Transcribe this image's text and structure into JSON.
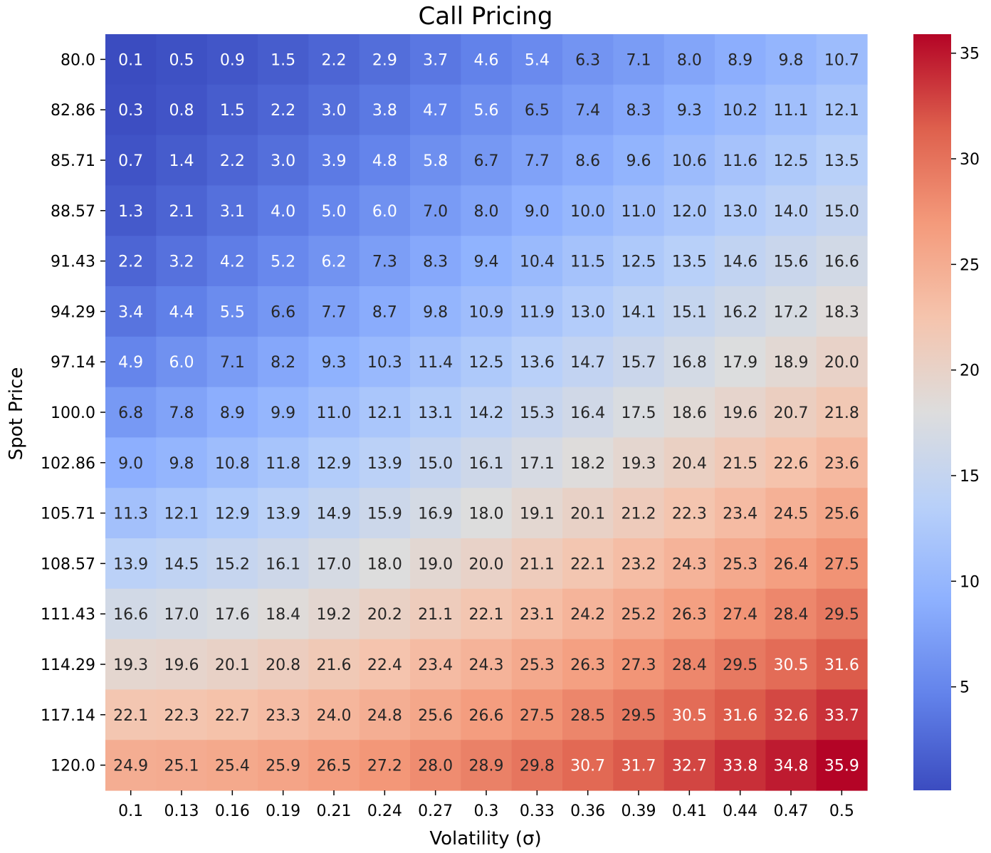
{
  "chart_data": {
    "type": "heatmap",
    "title": "Call Pricing",
    "xlabel": "Volatility (σ)",
    "ylabel": "Spot Price",
    "x_tick_labels": [
      "0.1",
      "0.13",
      "0.16",
      "0.19",
      "0.21",
      "0.24",
      "0.27",
      "0.3",
      "0.33",
      "0.36",
      "0.39",
      "0.41",
      "0.44",
      "0.47",
      "0.5"
    ],
    "y_tick_labels": [
      "80.0",
      "82.86",
      "85.71",
      "88.57",
      "91.43",
      "94.29",
      "97.14",
      "100.0",
      "102.86",
      "105.71",
      "108.57",
      "111.43",
      "114.29",
      "117.14",
      "120.0"
    ],
    "values": [
      [
        0.1,
        0.5,
        0.9,
        1.5,
        2.2,
        2.9,
        3.7,
        4.6,
        5.4,
        6.3,
        7.1,
        8.0,
        8.9,
        9.8,
        10.7
      ],
      [
        0.3,
        0.8,
        1.5,
        2.2,
        3.0,
        3.8,
        4.7,
        5.6,
        6.5,
        7.4,
        8.3,
        9.3,
        10.2,
        11.1,
        12.1
      ],
      [
        0.7,
        1.4,
        2.2,
        3.0,
        3.9,
        4.8,
        5.8,
        6.7,
        7.7,
        8.6,
        9.6,
        10.6,
        11.6,
        12.5,
        13.5
      ],
      [
        1.3,
        2.1,
        3.1,
        4.0,
        5.0,
        6.0,
        7.0,
        8.0,
        9.0,
        10.0,
        11.0,
        12.0,
        13.0,
        14.0,
        15.0
      ],
      [
        2.2,
        3.2,
        4.2,
        5.2,
        6.2,
        7.3,
        8.3,
        9.4,
        10.4,
        11.5,
        12.5,
        13.5,
        14.6,
        15.6,
        16.6
      ],
      [
        3.4,
        4.4,
        5.5,
        6.6,
        7.7,
        8.7,
        9.8,
        10.9,
        11.9,
        13.0,
        14.1,
        15.1,
        16.2,
        17.2,
        18.3
      ],
      [
        4.9,
        6.0,
        7.1,
        8.2,
        9.3,
        10.3,
        11.4,
        12.5,
        13.6,
        14.7,
        15.7,
        16.8,
        17.9,
        18.9,
        20.0
      ],
      [
        6.8,
        7.8,
        8.9,
        9.9,
        11.0,
        12.1,
        13.1,
        14.2,
        15.3,
        16.4,
        17.5,
        18.6,
        19.6,
        20.7,
        21.8
      ],
      [
        9.0,
        9.8,
        10.8,
        11.8,
        12.9,
        13.9,
        15.0,
        16.1,
        17.1,
        18.2,
        19.3,
        20.4,
        21.5,
        22.6,
        23.6
      ],
      [
        11.3,
        12.1,
        12.9,
        13.9,
        14.9,
        15.9,
        16.9,
        18.0,
        19.1,
        20.1,
        21.2,
        22.3,
        23.4,
        24.5,
        25.6
      ],
      [
        13.9,
        14.5,
        15.2,
        16.1,
        17.0,
        18.0,
        19.0,
        20.0,
        21.1,
        22.1,
        23.2,
        24.3,
        25.3,
        26.4,
        27.5
      ],
      [
        16.6,
        17.0,
        17.6,
        18.4,
        19.2,
        20.2,
        21.1,
        22.1,
        23.1,
        24.2,
        25.2,
        26.3,
        27.4,
        28.4,
        29.5
      ],
      [
        19.3,
        19.6,
        20.1,
        20.8,
        21.6,
        22.4,
        23.4,
        24.3,
        25.3,
        26.3,
        27.3,
        28.4,
        29.5,
        30.5,
        31.6
      ],
      [
        22.1,
        22.3,
        22.7,
        23.3,
        24.0,
        24.8,
        25.6,
        26.6,
        27.5,
        28.5,
        29.5,
        30.5,
        31.6,
        32.6,
        33.7
      ],
      [
        24.9,
        25.1,
        25.4,
        25.9,
        26.5,
        27.2,
        28.0,
        28.9,
        29.8,
        30.7,
        31.7,
        32.7,
        33.8,
        34.8,
        35.9
      ]
    ],
    "colormap": "coolwarm",
    "colorbar_range": [
      0.1,
      35.9
    ],
    "colorbar_ticks": [
      5,
      10,
      15,
      20,
      25,
      30,
      35
    ],
    "grid": false,
    "legend": "colorbar right"
  }
}
